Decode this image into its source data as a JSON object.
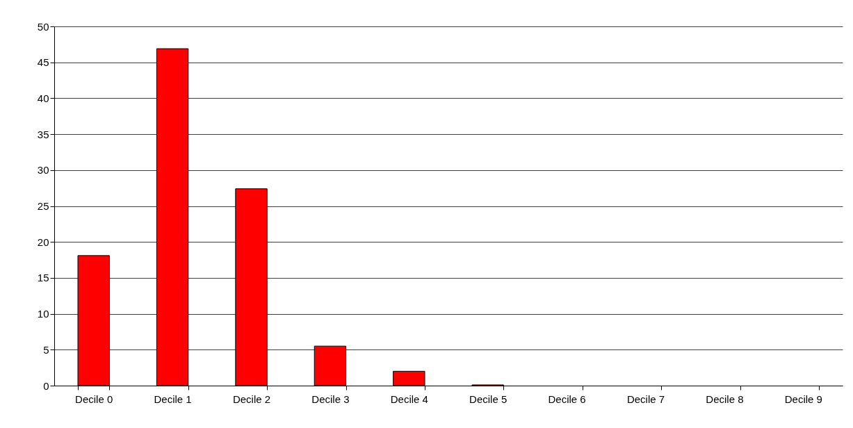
{
  "chart_data": {
    "type": "bar",
    "categories": [
      "Decile 0",
      "Decile 1",
      "Decile 2",
      "Decile 3",
      "Decile 4",
      "Decile 5",
      "Decile 6",
      "Decile 7",
      "Decile 8",
      "Decile 9"
    ],
    "values": [
      18.1,
      46.9,
      27.4,
      5.5,
      2.0,
      0.1,
      0,
      0,
      0,
      0
    ],
    "color": "#ff0000",
    "ylim": [
      0,
      50
    ],
    "yticks": [
      0,
      5,
      10,
      15,
      20,
      25,
      30,
      35,
      40,
      45,
      50
    ],
    "grid": "y"
  }
}
